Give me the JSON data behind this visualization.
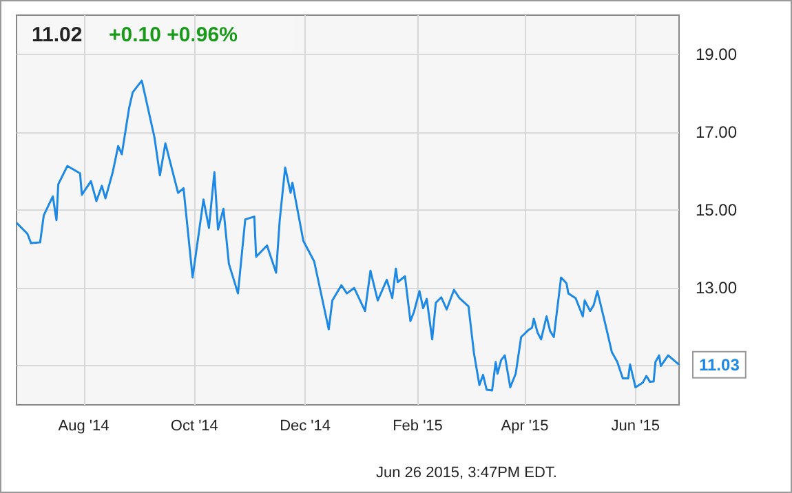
{
  "chart_data": {
    "type": "line",
    "title": "11.02",
    "subtitle": "+0.10 +0.96%",
    "annotations": [
      {
        "text": "11.03",
        "x": "2015-06-25",
        "y": 11.03
      },
      "Jun 26 2015, 3:47PM EDT."
    ],
    "x": [
      "2014-06-25",
      "2014-07-01",
      "2014-07-03",
      "2014-07-08",
      "2014-07-10",
      "2014-07-15",
      "2014-07-17",
      "2014-07-18",
      "2014-07-23",
      "2014-07-30",
      "2014-07-31",
      "2014-08-05",
      "2014-08-08",
      "2014-08-11",
      "2014-08-13",
      "2014-08-17",
      "2014-08-20",
      "2014-08-22",
      "2014-08-26",
      "2014-08-28",
      "2014-09-02",
      "2014-09-04",
      "2014-09-09",
      "2014-09-12",
      "2014-09-15",
      "2014-09-22",
      "2014-09-25",
      "2014-09-30",
      "2014-10-06",
      "2014-10-09",
      "2014-10-12",
      "2014-10-14",
      "2014-10-17",
      "2014-10-20",
      "2014-10-25",
      "2014-10-29",
      "2014-11-03",
      "2014-11-04",
      "2014-11-10",
      "2014-11-15",
      "2014-11-17",
      "2014-11-20",
      "2014-11-23",
      "2014-11-24",
      "2014-11-30",
      "2014-12-06",
      "2014-12-14",
      "2014-12-16",
      "2014-12-21",
      "2014-12-24",
      "2014-12-28",
      "2015-01-03",
      "2015-01-06",
      "2015-01-10",
      "2015-01-15",
      "2015-01-18",
      "2015-01-20",
      "2015-01-21",
      "2015-01-25",
      "2015-01-28",
      "2015-01-30",
      "2015-02-02",
      "2015-02-04",
      "2015-02-06",
      "2015-02-09",
      "2015-02-11",
      "2015-02-14",
      "2015-02-17",
      "2015-02-21",
      "2015-02-24",
      "2015-03-01",
      "2015-03-04",
      "2015-03-07",
      "2015-03-09",
      "2015-03-11",
      "2015-03-14",
      "2015-03-16",
      "2015-03-17",
      "2015-03-19",
      "2015-03-21",
      "2015-03-24",
      "2015-03-27",
      "2015-03-30",
      "2015-04-03",
      "2015-04-05",
      "2015-04-06",
      "2015-04-08",
      "2015-04-10",
      "2015-04-13",
      "2015-04-15",
      "2015-04-17",
      "2015-04-21",
      "2015-04-24",
      "2015-04-25",
      "2015-04-29",
      "2015-05-03",
      "2015-05-04",
      "2015-05-07",
      "2015-05-09",
      "2015-05-11",
      "2015-05-15",
      "2015-05-19",
      "2015-05-22",
      "2015-05-25",
      "2015-05-28",
      "2015-05-29",
      "2015-06-01",
      "2015-06-05",
      "2015-06-07",
      "2015-06-09",
      "2015-06-11",
      "2015-06-12",
      "2015-06-14",
      "2015-06-15",
      "2015-06-19",
      "2015-06-25"
    ],
    "series": [
      {
        "color": "#1e88e5",
        "values": [
          14.67,
          14.39,
          14.15,
          14.17,
          14.86,
          15.35,
          14.74,
          15.66,
          16.13,
          15.94,
          15.39,
          15.74,
          15.23,
          15.62,
          15.3,
          15.97,
          16.64,
          16.43,
          17.61,
          18.02,
          18.32,
          17.91,
          16.86,
          15.89,
          16.71,
          15.44,
          15.56,
          13.27,
          15.27,
          14.54,
          15.97,
          14.5,
          15.03,
          13.62,
          12.86,
          14.76,
          14.83,
          13.8,
          14.09,
          13.39,
          14.74,
          16.09,
          15.44,
          15.7,
          14.21,
          13.68,
          11.94,
          12.68,
          13.07,
          12.86,
          13.0,
          12.41,
          13.44,
          12.68,
          13.21,
          12.74,
          13.5,
          13.15,
          13.3,
          12.15,
          12.39,
          12.92,
          12.48,
          12.72,
          11.68,
          12.62,
          12.76,
          12.45,
          12.95,
          12.74,
          12.53,
          11.33,
          10.51,
          10.77,
          10.39,
          10.37,
          11.1,
          10.8,
          11.15,
          11.27,
          10.45,
          10.8,
          11.74,
          11.92,
          11.98,
          12.21,
          11.86,
          11.68,
          12.27,
          11.89,
          11.74,
          13.27,
          13.12,
          12.86,
          12.74,
          12.27,
          12.68,
          12.41,
          12.56,
          12.92,
          12.15,
          11.35,
          11.1,
          10.68,
          10.68,
          11.04,
          10.45,
          10.57,
          10.74,
          10.59,
          10.6,
          11.1,
          11.27,
          11.0,
          11.27,
          11.03
        ]
      }
    ],
    "xlim": [
      "2014-06-25",
      "2015-06-25"
    ],
    "xticks": [
      {
        "value": "2014-08-01",
        "label": "Aug '14"
      },
      {
        "value": "2014-10-01",
        "label": "Oct '14"
      },
      {
        "value": "2014-12-01",
        "label": "Dec '14"
      },
      {
        "value": "2015-02-01",
        "label": "Feb '15"
      },
      {
        "value": "2015-04-01",
        "label": "Apr '15"
      },
      {
        "value": "2015-06-01",
        "label": "Jun '15"
      }
    ],
    "ylim": [
      10,
      20
    ],
    "yticks": [
      {
        "value": 11,
        "label": null
      },
      {
        "value": 13,
        "label": "13.00"
      },
      {
        "value": 15,
        "label": "15.00"
      },
      {
        "value": 17,
        "label": "17.00"
      },
      {
        "value": 19,
        "label": "19.00"
      }
    ],
    "grid": true,
    "marker": "none",
    "line_style": "solid"
  }
}
